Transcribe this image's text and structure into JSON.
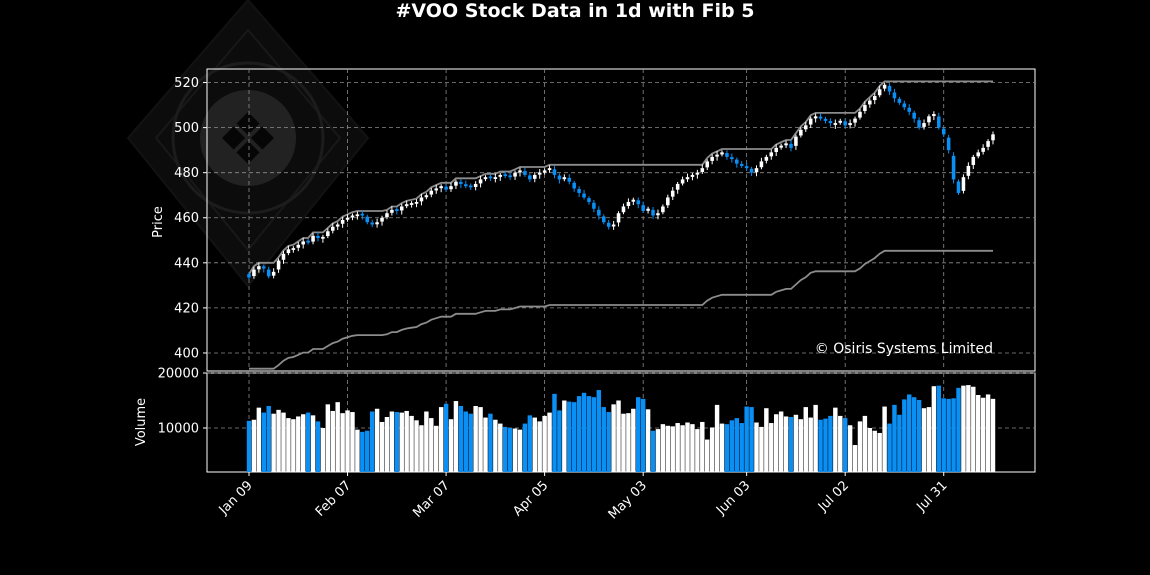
{
  "chart_data": {
    "type": "candlestick",
    "title": "#VOO Stock Data in 1d with Fib 5",
    "watermark": "© Osiris Systems Limited",
    "price_axis": {
      "label": "Price",
      "ticks": [
        400,
        420,
        440,
        460,
        480,
        500,
        520
      ],
      "ylim": [
        392,
        526
      ]
    },
    "volume_axis": {
      "label": "Volume",
      "ticks": [
        10000,
        20000
      ],
      "tick_labels": [
        "10000",
        "20000"
      ],
      "ylim": [
        2000,
        20000
      ]
    },
    "x_ticks": [
      "Jan 09",
      "Feb 07",
      "Mar 07",
      "Apr 05",
      "May 03",
      "Jun 03",
      "Jul 02",
      "Jul 31"
    ],
    "grid": true,
    "colors": {
      "up": "#ffffff",
      "down": "#0a8ff5",
      "fib": "#8c8c8c",
      "grid": "#8c8c8c",
      "background": "#000000"
    },
    "candles": {
      "close": [
        433.5,
        437,
        438.5,
        437.5,
        434,
        436,
        441,
        444,
        446,
        446.5,
        448,
        449.5,
        449,
        452,
        451,
        451.5,
        454,
        456,
        457,
        459,
        460,
        461,
        461.5,
        461,
        458,
        457,
        458,
        460,
        462,
        463.5,
        463,
        465,
        466,
        466.5,
        467,
        469,
        470,
        472,
        473,
        474,
        472.5,
        474,
        476,
        475,
        474,
        473.5,
        475,
        477,
        478,
        477.5,
        478,
        479,
        478.5,
        478,
        480,
        481,
        479,
        477,
        479,
        480,
        481,
        482,
        479,
        477,
        478,
        476,
        473,
        471,
        469,
        467,
        464,
        461,
        458,
        456,
        457,
        462,
        465,
        467,
        468,
        466,
        463,
        464,
        461,
        462,
        465,
        469,
        472,
        475,
        477,
        478,
        479,
        480,
        482,
        485,
        487,
        488,
        489,
        487,
        486,
        484,
        483,
        482,
        480,
        482,
        485,
        487,
        489,
        491,
        492,
        493,
        491,
        496,
        499,
        501,
        504,
        505,
        504,
        503,
        502,
        502,
        503,
        501,
        502,
        504,
        507,
        510,
        512,
        514,
        517,
        519,
        516,
        513,
        511,
        509,
        507,
        504,
        500,
        502,
        505,
        506,
        500,
        497,
        490,
        477,
        471,
        478,
        483,
        487,
        489,
        491,
        494,
        497
      ],
      "body_pct": [
        0.55,
        0.6,
        0.3,
        0.4,
        0.45,
        0.5,
        0.7,
        0.4,
        0.5,
        0.3,
        0.4,
        0.35,
        0.5,
        0.45,
        0.3,
        0.35,
        0.5,
        0.4,
        0.3,
        0.55,
        0.35,
        0.4,
        0.5,
        0.3,
        0.6,
        0.45,
        0.35,
        0.5,
        0.4,
        0.45,
        0.3,
        0.4,
        0.5,
        0.35,
        0.4,
        0.45,
        0.3,
        0.5,
        0.4,
        0.45,
        0.55,
        0.35,
        0.4,
        0.3,
        0.45,
        0.5,
        0.35,
        0.4,
        0.45,
        0.3,
        0.35,
        0.5,
        0.4,
        0.3,
        0.45,
        0.4,
        0.5,
        0.35,
        0.45,
        0.4,
        0.3,
        0.5,
        0.6,
        0.45,
        0.35,
        0.5,
        0.55,
        0.4,
        0.45,
        0.5,
        0.4,
        0.55,
        0.45,
        0.35,
        0.4,
        0.6,
        0.5,
        0.35,
        0.4,
        0.45,
        0.5,
        0.3,
        0.55,
        0.4,
        0.5,
        0.45,
        0.4,
        0.5,
        0.35,
        0.3,
        0.4,
        0.45,
        0.5,
        0.4,
        0.35,
        0.45,
        0.3,
        0.5,
        0.4,
        0.35,
        0.45,
        0.4,
        0.5,
        0.35,
        0.45,
        0.5,
        0.4,
        0.3,
        0.35,
        0.45,
        0.4,
        0.6,
        0.55,
        0.45,
        0.4,
        0.3,
        0.35,
        0.4,
        0.3,
        0.35,
        0.5,
        0.4,
        0.45,
        0.35,
        0.5,
        0.4,
        0.45,
        0.35,
        0.4,
        0.5,
        0.55,
        0.45,
        0.4,
        0.5,
        0.35,
        0.45,
        0.6,
        0.5,
        0.4,
        0.45,
        0.6,
        0.55,
        0.7,
        0.65,
        0.5,
        0.45,
        0.4,
        0.35,
        0.45,
        0.4,
        0.5
      ]
    },
    "volume": [
      11300,
      11500,
      13700,
      12800,
      14000,
      12600,
      13300,
      12800,
      11800,
      11600,
      12100,
      12500,
      12800,
      12300,
      11200,
      10000,
      14300,
      13100,
      14700,
      12700,
      13200,
      12900,
      9700,
      9300,
      9500,
      13000,
      13500,
      11100,
      12000,
      13000,
      12900,
      12800,
      13100,
      12200,
      11400,
      10500,
      13000,
      11800,
      10400,
      13800,
      14400,
      11600,
      14900,
      14000,
      13000,
      12600,
      14000,
      13800,
      11900,
      12600,
      11500,
      10800,
      10200,
      10000,
      9900,
      9700,
      10800,
      12300,
      11900,
      11200,
      12200,
      12800,
      16200,
      13200,
      15000,
      14800,
      14700,
      15800,
      16400,
      15800,
      15600,
      16900,
      13800,
      12900,
      14300,
      15000,
      12600,
      12700,
      13500,
      15600,
      15300,
      13400,
      9500,
      9800,
      10700,
      10400,
      10300,
      10900,
      10500,
      11000,
      10700,
      9800,
      11100,
      7900,
      10100,
      14200,
      10800,
      10700,
      11400,
      11800,
      10900,
      13900,
      13800,
      11000,
      10200,
      13600,
      10900,
      12500,
      13000,
      12100,
      12000,
      12400,
      11600,
      13800,
      11900,
      14200,
      11500,
      11700,
      12200,
      13700,
      12200,
      11800,
      10500,
      6900,
      11200,
      12200,
      10000,
      9500,
      9100,
      13900,
      10800,
      14200,
      12400,
      15200,
      16100,
      15600,
      15100,
      13600,
      13800,
      17600,
      17700,
      15400,
      15300,
      15400,
      17300,
      17700,
      17800,
      17500,
      16000,
      15500,
      16100,
      15300,
      14000
    ]
  },
  "watermark_logo": "osiris-logo-icon"
}
